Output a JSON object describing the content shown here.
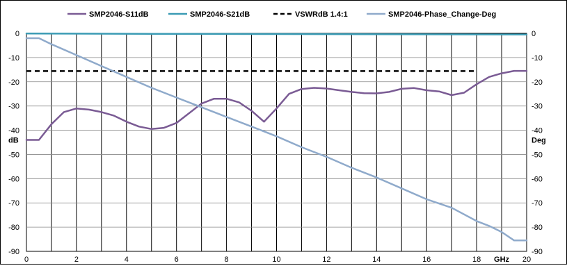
{
  "chart_data": {
    "type": "line",
    "title": "",
    "legend_position": "top",
    "x_ticks": [
      0,
      2,
      4,
      6,
      8,
      10,
      12,
      14,
      16,
      18,
      20
    ],
    "x_unit_label": "GHz",
    "xlim": [
      0,
      20
    ],
    "vertical_grid_every": 1,
    "horizontal_grid": true,
    "left_axis": {
      "label": "dB",
      "ylim": [
        -90,
        0
      ],
      "ticks": [
        0,
        -10,
        -20,
        -30,
        -40,
        -50,
        -60,
        -70,
        -80,
        -90
      ]
    },
    "right_axis": {
      "label": "Deg",
      "ylim": [
        -90,
        0
      ],
      "ticks": [
        0,
        -10,
        -20,
        -30,
        -40,
        -50,
        -60,
        -70,
        -80,
        -90
      ]
    },
    "series": [
      {
        "name": "SMP2046-S11dB",
        "color": "#7a5b94",
        "style": "solid",
        "axis": "left",
        "x": [
          0,
          0.5,
          1,
          1.5,
          2,
          2.5,
          3,
          3.5,
          4,
          4.5,
          5,
          5.5,
          6,
          6.5,
          7,
          7.5,
          8,
          8.5,
          9,
          9.5,
          10,
          10.5,
          11,
          11.5,
          12,
          12.5,
          13,
          13.5,
          14,
          14.5,
          15,
          15.5,
          16,
          16.5,
          17,
          17.5,
          18,
          18.5,
          19,
          19.5,
          20
        ],
        "y": [
          -44,
          -44,
          -37.5,
          -32.5,
          -31,
          -31.5,
          -32.5,
          -34,
          -36.5,
          -38.5,
          -39.5,
          -39,
          -37,
          -33,
          -29,
          -27,
          -27,
          -28.5,
          -32,
          -36.5,
          -31,
          -25,
          -23,
          -22.5,
          -22.8,
          -23.5,
          -24.2,
          -24.7,
          -24.8,
          -24.2,
          -22.9,
          -22.6,
          -23.5,
          -24,
          -25.5,
          -24.5,
          -21,
          -18,
          -16.5,
          -15.5,
          -15.5
        ]
      },
      {
        "name": "SMP2046-S21dB",
        "color": "#3a9bb4",
        "style": "solid",
        "axis": "left",
        "x": [
          0,
          5,
          10,
          15,
          20
        ],
        "y": [
          -0.1,
          -0.2,
          -0.3,
          -0.4,
          -0.5
        ]
      },
      {
        "name": "VSWRdB 1.4:1",
        "color": "#000000",
        "style": "dashed",
        "axis": "left",
        "x": [
          0,
          18
        ],
        "y": [
          -15.6,
          -15.6
        ]
      },
      {
        "name": "SMP2046-Phase_Change-Deg",
        "color": "#8faacb",
        "style": "solid",
        "axis": "right",
        "x": [
          0,
          0.5,
          1,
          2,
          3,
          4,
          5,
          6,
          7,
          8,
          9,
          10,
          11,
          12,
          13,
          14,
          15,
          16,
          17,
          18,
          18.5,
          19,
          19.5,
          20
        ],
        "y": [
          -2,
          -2,
          -4.5,
          -9,
          -13.5,
          -18,
          -22.5,
          -26.5,
          -30.5,
          -34.5,
          -38.5,
          -42.5,
          -47,
          -51,
          -55.5,
          -59.5,
          -64,
          -68.5,
          -72,
          -77.5,
          -79.5,
          -82,
          -85.5,
          -85.5
        ]
      }
    ]
  }
}
